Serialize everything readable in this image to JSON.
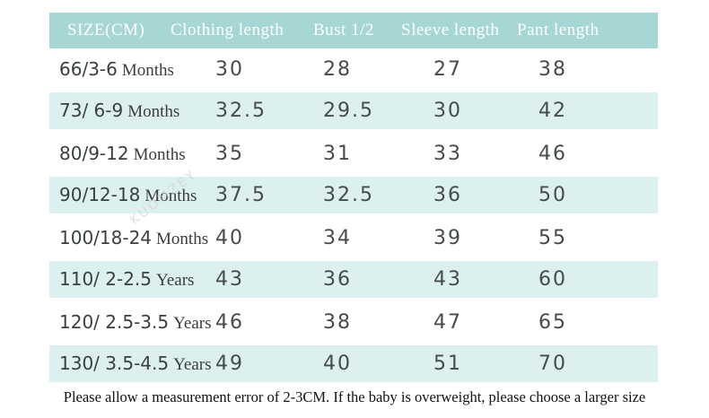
{
  "chart_data": {
    "type": "table",
    "title": "Baby clothing size chart (CM)",
    "columns": [
      "SIZE(CM)",
      "Clothing length",
      "Bust 1/2",
      "Sleeve length",
      "Pant length"
    ],
    "rows": [
      [
        "66/3-6 Months",
        30,
        28,
        27,
        38
      ],
      [
        "73/ 6-9 Months",
        32.5,
        29.5,
        30,
        42
      ],
      [
        "80/9-12 Months",
        35,
        31,
        33,
        46
      ],
      [
        "90/12-18 Months",
        37.5,
        32.5,
        36,
        50
      ],
      [
        "100/18-24 Months",
        40,
        34,
        39,
        55
      ],
      [
        "110/ 2-2.5 Years",
        43,
        36,
        43,
        60
      ],
      [
        "120/ 2.5-3.5 Years",
        46,
        38,
        47,
        65
      ],
      [
        "130/ 3.5-4.5 Years",
        49,
        40,
        51,
        70
      ]
    ],
    "note": "Please allow a measurement error of 2-3CM. If the baby is overweight, please choose a larger size",
    "layout_hints": {
      "striped_rows": "even rows mint",
      "header_bg": "#a6d7d4",
      "stripe_bg": "#dcf1ef"
    }
  },
  "table": {
    "headers": {
      "size": "SIZE(CM)",
      "clothing": "Clothing length",
      "bust": "Bust 1/2",
      "sleeve": "Sleeve length",
      "pant": "Pant length"
    },
    "rows": [
      {
        "size_num": "66/3-6",
        "size_word": "Months",
        "clothing": "30",
        "bust": "28",
        "sleeve": "27",
        "pant": "38"
      },
      {
        "size_num": "73/ 6-9",
        "size_word": "Months",
        "clothing": "32.5",
        "bust": "29.5",
        "sleeve": "30",
        "pant": "42"
      },
      {
        "size_num": "80/9-12",
        "size_word": "Months",
        "clothing": "35",
        "bust": "31",
        "sleeve": "33",
        "pant": "46"
      },
      {
        "size_num": "90/12-18",
        "size_word": "Months",
        "clothing": "37.5",
        "bust": "32.5",
        "sleeve": "36",
        "pant": "50"
      },
      {
        "size_num": "100/18-24",
        "size_word": "Months",
        "clothing": "40",
        "bust": "34",
        "sleeve": "39",
        "pant": "55"
      },
      {
        "size_num": "110/ 2-2.5",
        "size_word": "Years",
        "clothing": "43",
        "bust": "36",
        "sleeve": "43",
        "pant": "60"
      },
      {
        "size_num": "120/ 2.5-3.5",
        "size_word": "Years",
        "clothing": "46",
        "bust": "38",
        "sleeve": "47",
        "pant": "65"
      },
      {
        "size_num": "130/ 3.5-4.5",
        "size_word": "Years",
        "clothing": "49",
        "bust": "40",
        "sleeve": "51",
        "pant": "70"
      }
    ]
  },
  "watermark": {
    "text": "KUOMZEY"
  },
  "footer": {
    "note": "Please allow a measurement error of 2-3CM. If the baby is overweight, please choose a larger size"
  },
  "colors": {
    "header_bg": "#a6d7d4",
    "stripe_bg": "#dcf1ef",
    "header_text": "#ffffff",
    "label_text": "#3c3c3c",
    "value_text": "#454b4e",
    "footer_text": "#121212"
  }
}
